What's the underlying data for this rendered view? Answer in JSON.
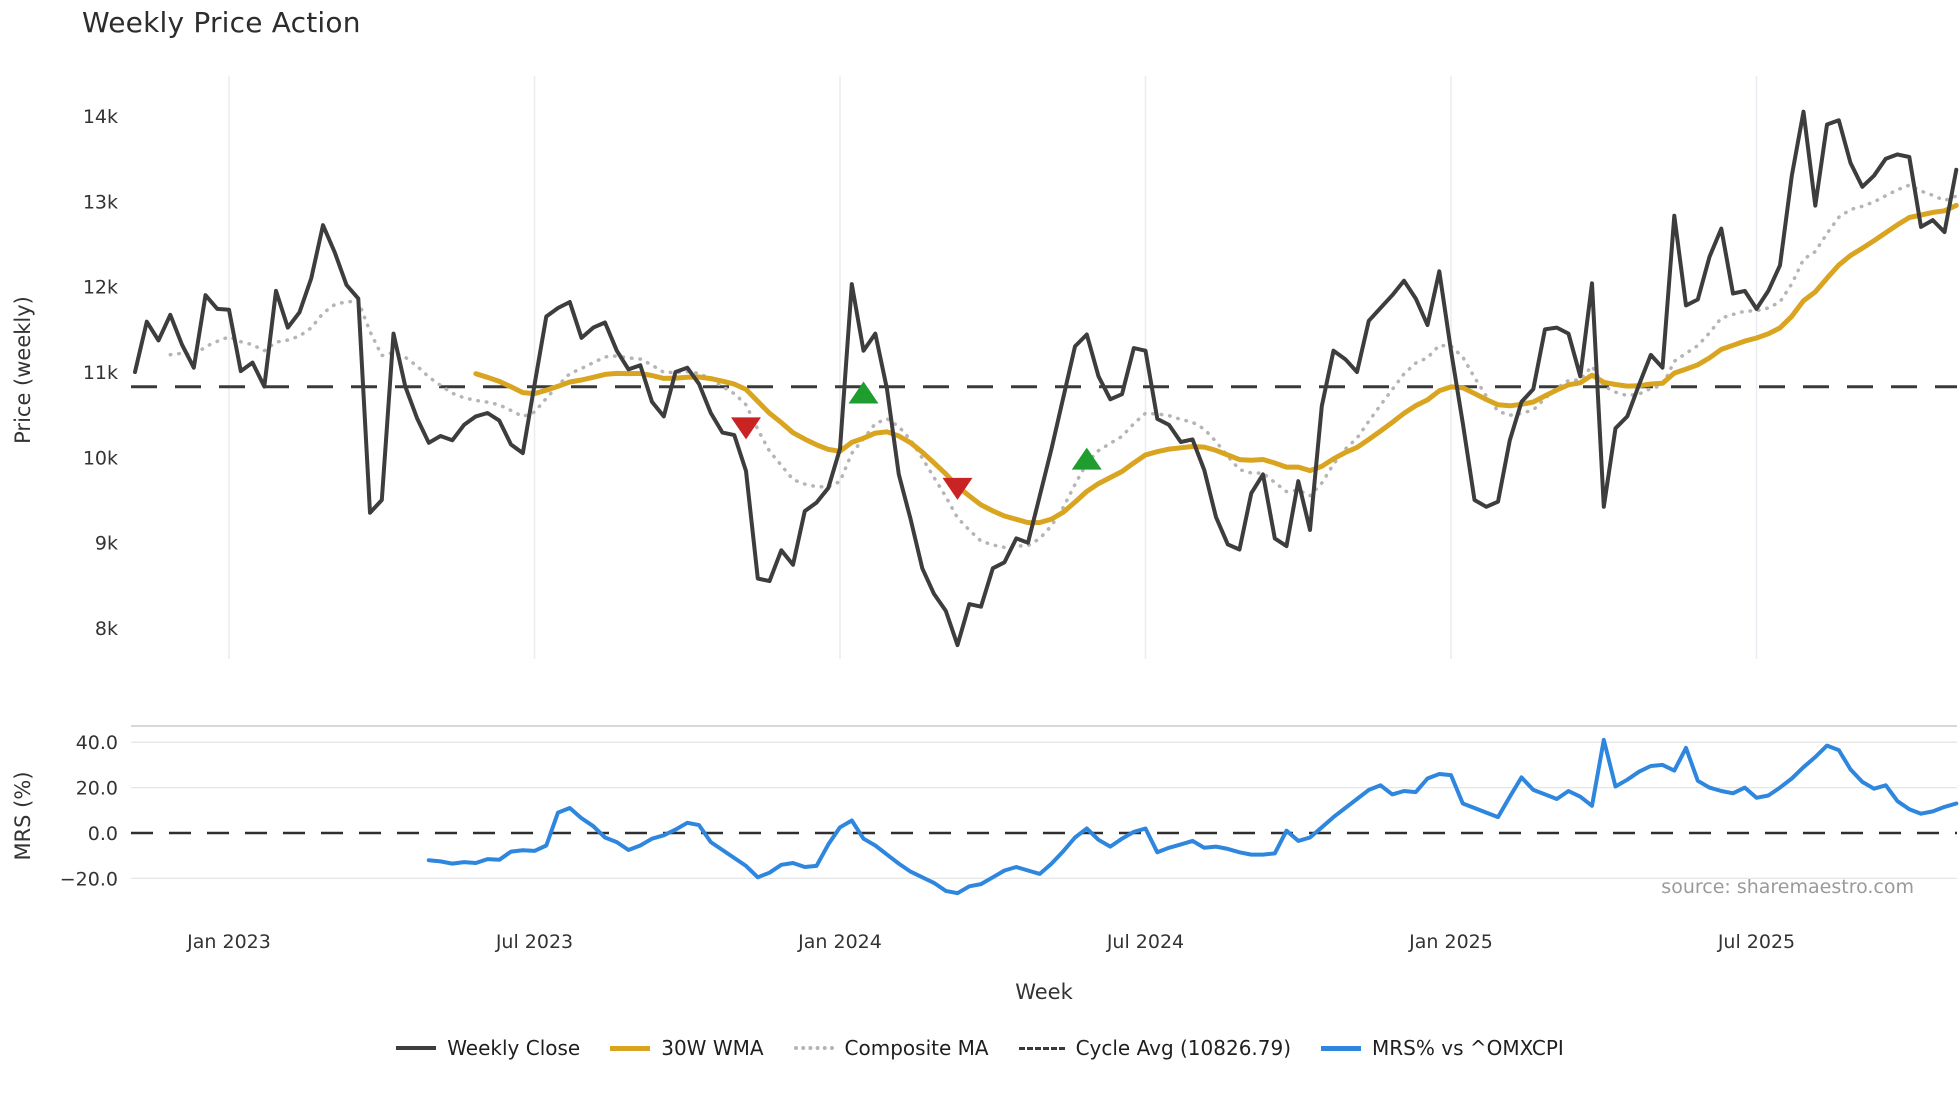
{
  "title": "Weekly Price Action",
  "source_note": "source: sharemaestro.com",
  "colors": {
    "weekly_close": "#3d3d3d",
    "wma_30w": "#d9a521",
    "composite_ma": "#b5b5b5",
    "cycle_avg": "#3a3a3a",
    "mrs_line": "#2e86de",
    "buy_marker": "#1f9d2f",
    "sell_marker": "#c92323",
    "grid_vertical": "#e9edf2",
    "grid_horizontal": "#e6e6e6",
    "panel_spine": "#cccccc"
  },
  "legend": [
    {
      "label": "Weekly Close",
      "swatch": "solid-dark"
    },
    {
      "label": "30W WMA",
      "swatch": "solid-gold"
    },
    {
      "label": "Composite MA",
      "swatch": "dotted-gray"
    },
    {
      "label": "Cycle Avg (10826.79)",
      "swatch": "dashed-dark"
    },
    {
      "label": "MRS% vs ^OMXCPI",
      "swatch": "solid-blue"
    }
  ],
  "chart_data": {
    "type": "line",
    "x": {
      "label": "Week",
      "unit": "weekly",
      "n_points": 156,
      "ticks": [
        {
          "label": "Jan 2023",
          "week": 8
        },
        {
          "label": "Jul 2023",
          "week": 34
        },
        {
          "label": "Jan 2024",
          "week": 60
        },
        {
          "label": "Jul 2024",
          "week": 86
        },
        {
          "label": "Jan 2025",
          "week": 112
        },
        {
          "label": "Jul 2025",
          "week": 138
        }
      ]
    },
    "panels": [
      {
        "id": "price",
        "ylabel": "Price (weekly)",
        "ylim": [
          7600,
          14400
        ],
        "grid": "vertical-only",
        "yticks": [
          {
            "label": "14k",
            "value": 14000
          },
          {
            "label": "13k",
            "value": 13000
          },
          {
            "label": "12k",
            "value": 12000
          },
          {
            "label": "11k",
            "value": 11000
          },
          {
            "label": "10k",
            "value": 10000
          },
          {
            "label": "9k",
            "value": 9000
          },
          {
            "label": "8k",
            "value": 8000
          }
        ],
        "series": [
          {
            "name": "Weekly Close",
            "color": "#3d3d3d",
            "line": "solid",
            "width": 4,
            "start_week": 0,
            "values": [
              11000,
              11590,
              11370,
              11670,
              11320,
              11050,
              11900,
              11740,
              11730,
              11010,
              11110,
              10830,
              11950,
              11520,
              11700,
              12100,
              12720,
              12400,
              12020,
              11860,
              9350,
              9500,
              11450,
              10830,
              10460,
              10170,
              10250,
              10200,
              10380,
              10480,
              10520,
              10430,
              10150,
              10050,
              10850,
              11650,
              11750,
              11820,
              11400,
              11520,
              11580,
              11250,
              11030,
              11080,
              10650,
              10480,
              11000,
              11050,
              10860,
              10520,
              10290,
              10260,
              9840,
              8580,
              8550,
              8910,
              8740,
              9370,
              9470,
              9640,
              10100,
              12030,
              11250,
              11450,
              10800,
              9800,
              9280,
              8700,
              8400,
              8200,
              7800,
              8280,
              8250,
              8700,
              8770,
              9050,
              9000,
              9550,
              10100,
              10700,
              11300,
              11440,
              10950,
              10680,
              10740,
              11280,
              11250,
              10450,
              10380,
              10180,
              10210,
              9850,
              9300,
              8980,
              8920,
              9580,
              9800,
              9050,
              8960,
              9720,
              9150,
              10600,
              11250,
              11150,
              11000,
              11600,
              11750,
              11900,
              12070,
              11860,
              11550,
              12180,
              11250,
              10400,
              9500,
              9420,
              9480,
              10200,
              10650,
              10800,
              11500,
              11520,
              11450,
              10950,
              12040,
              9420,
              10340,
              10480,
              10850,
              11200,
              11050,
              12830,
              11780,
              11850,
              12350,
              12680,
              11920,
              11950,
              11740,
              11950,
              12250,
              13300,
              14050,
              12950,
              13900,
              13950,
              13450,
              13170,
              13300,
              13500,
              13550,
              13520,
              12700,
              12780,
              12640,
              13370
            ]
          },
          {
            "name": "30W WMA",
            "color": "#d9a521",
            "line": "solid",
            "width": 5,
            "derived_from": "Weekly Close",
            "method": "weighted_ma",
            "window": 30
          },
          {
            "name": "Composite MA",
            "color": "#b5b5b5",
            "line": "dotted",
            "width": 3.5,
            "derived_from": "Weekly Close",
            "method": "ema",
            "window": 13
          },
          {
            "name": "Cycle Avg",
            "color": "#3a3a3a",
            "line": "dashed",
            "width": 3,
            "constant": 10826.79
          }
        ],
        "markers": [
          {
            "week": 52,
            "value": 10340,
            "type": "sell",
            "color": "#c92323"
          },
          {
            "week": 62,
            "value": 10760,
            "type": "buy",
            "color": "#1f9d2f"
          },
          {
            "week": 70,
            "value": 9630,
            "type": "sell",
            "color": "#c92323"
          },
          {
            "week": 81,
            "value": 9985,
            "type": "buy",
            "color": "#1f9d2f"
          }
        ]
      },
      {
        "id": "mrs",
        "ylabel": "MRS (%)",
        "ylim": [
          -32,
          46
        ],
        "grid": "horizontal-only",
        "yticks": [
          {
            "label": "40.0",
            "value": 40
          },
          {
            "label": "20.0",
            "value": 20
          },
          {
            "label": "0.0",
            "value": 0
          },
          {
            "label": "−20.0",
            "value": -20
          }
        ],
        "zero_line": {
          "style": "dashed",
          "value": 0
        },
        "series": [
          {
            "name": "MRS% vs ^OMXCPI",
            "color": "#2e86de",
            "line": "solid",
            "width": 4,
            "start_week": 25,
            "values": [
              -12,
              -12.5,
              -13.5,
              -12.8,
              -13.2,
              -11.5,
              -11.8,
              -8.2,
              -7.6,
              -7.9,
              -5.5,
              9,
              11,
              6.5,
              3,
              -2,
              -4,
              -7.5,
              -5.5,
              -2.5,
              -1,
              1.5,
              4.5,
              3.5,
              -4,
              -7.5,
              -11,
              -14.5,
              -19.5,
              -17.5,
              -14,
              -13.2,
              -15,
              -14.5,
              -5,
              2.5,
              5.5,
              -2.5,
              -5.5,
              -9.5,
              -13.5,
              -17,
              -19.5,
              -22,
              -25.5,
              -26.5,
              -23.5,
              -22.5,
              -19.5,
              -16.5,
              -15,
              -16.5,
              -18,
              -13.5,
              -8,
              -2,
              2,
              -3,
              -6,
              -2.5,
              0.5,
              2,
              -8.5,
              -6.5,
              -5,
              -3.5,
              -6.5,
              -6,
              -7,
              -8.5,
              -9.5,
              -9.5,
              -9,
              1,
              -3.5,
              -2,
              2.5,
              7,
              11,
              15,
              19,
              21,
              17,
              18.5,
              18,
              24,
              26,
              25.5,
              13,
              11,
              9,
              7,
              16,
              24.5,
              19,
              17,
              15,
              18.5,
              16,
              12,
              41,
              20.5,
              23.5,
              27,
              29.5,
              30,
              27.5,
              37.5,
              23,
              20,
              18.5,
              17.5,
              20,
              15.5,
              16.5,
              20,
              24,
              29,
              33.5,
              38.5,
              36.5,
              28,
              22.5,
              19.5,
              21,
              14,
              10.5,
              8.5,
              9.5,
              11.5,
              13
            ]
          }
        ]
      }
    ]
  }
}
